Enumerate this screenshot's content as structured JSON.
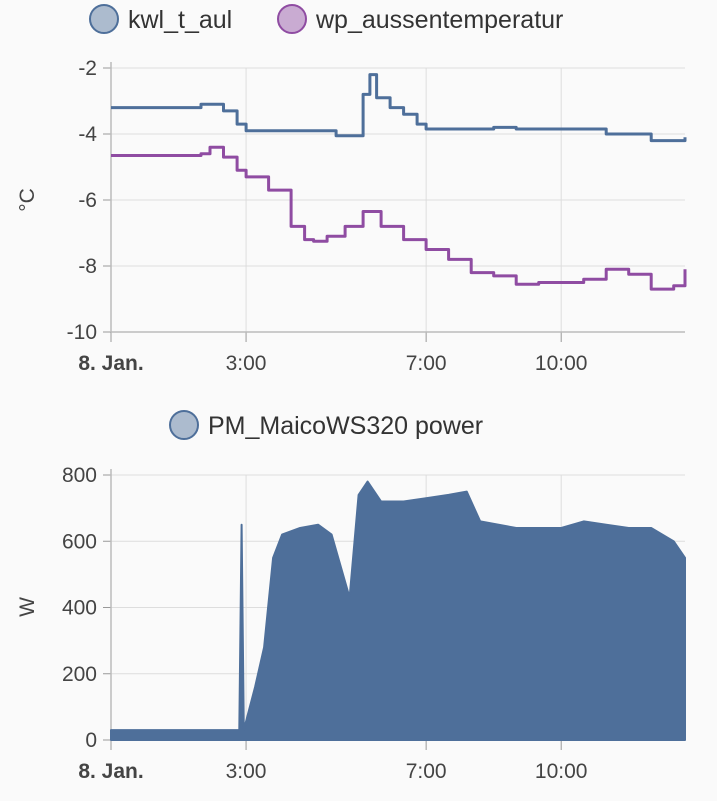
{
  "colors": {
    "series1": "#4e6f9a",
    "series2": "#8f4ca2",
    "power": "#4e6f9a",
    "grid": "#dddddd",
    "axis": "#bbbbbb"
  },
  "chart_data": [
    {
      "type": "line",
      "ylabel": "°C",
      "ylim": [
        -10,
        -2
      ],
      "yticks": [
        "-2",
        "-4",
        "-6",
        "-8",
        "-10"
      ],
      "xticks": [
        "8. Jan.",
        "3:00",
        "7:00",
        "10:00"
      ],
      "x_hours": [
        0,
        3,
        7,
        10
      ],
      "x_range_hours": [
        0,
        12.75
      ],
      "legend": "top",
      "grid": true,
      "series": [
        {
          "name": "kwl_t_aul",
          "x": [
            0,
            1,
            2,
            2.3,
            2.5,
            2.8,
            3,
            4,
            5,
            5.4,
            5.6,
            5.75,
            5.9,
            6.2,
            6.5,
            6.8,
            7,
            8,
            8.5,
            9,
            10,
            11,
            12,
            12.5,
            12.75
          ],
          "y": [
            -3.2,
            -3.2,
            -3.1,
            -3.1,
            -3.3,
            -3.7,
            -3.9,
            -3.9,
            -4.05,
            -4.05,
            -2.8,
            -2.2,
            -2.9,
            -3.2,
            -3.4,
            -3.7,
            -3.85,
            -3.85,
            -3.8,
            -3.85,
            -3.85,
            -4.0,
            -4.2,
            -4.2,
            -4.1
          ]
        },
        {
          "name": "wp_aussentemperatur",
          "x": [
            0,
            1,
            2,
            2.2,
            2.5,
            2.8,
            3,
            3.5,
            4,
            4.3,
            4.5,
            4.8,
            5.2,
            5.6,
            6,
            6.5,
            7,
            7.5,
            8,
            8.5,
            9,
            9.5,
            10,
            10.5,
            11,
            11.5,
            12,
            12.5,
            12.75
          ],
          "y": [
            -4.65,
            -4.65,
            -4.6,
            -4.4,
            -4.7,
            -5.1,
            -5.3,
            -5.7,
            -6.8,
            -7.2,
            -7.25,
            -7.1,
            -6.8,
            -6.35,
            -6.8,
            -7.2,
            -7.5,
            -7.8,
            -8.2,
            -8.3,
            -8.55,
            -8.5,
            -8.5,
            -8.4,
            -8.1,
            -8.25,
            -8.7,
            -8.6,
            -8.1
          ]
        }
      ]
    },
    {
      "type": "area",
      "ylabel": "W",
      "ylim": [
        0,
        800
      ],
      "yticks": [
        "800",
        "600",
        "400",
        "200",
        "0"
      ],
      "xticks": [
        "8. Jan.",
        "3:00",
        "7:00",
        "10:00"
      ],
      "x_hours": [
        0,
        3,
        7,
        10
      ],
      "x_range_hours": [
        0,
        12.75
      ],
      "legend": "top",
      "grid": true,
      "series": [
        {
          "name": "PM_MaicoWS320 power",
          "x": [
            0,
            1,
            2,
            2.85,
            2.9,
            2.95,
            3.2,
            3.4,
            3.6,
            3.8,
            4.2,
            4.6,
            4.9,
            5.3,
            5.5,
            5.7,
            6,
            6.5,
            7,
            7.5,
            7.9,
            8.2,
            9,
            10,
            10.5,
            11,
            11.5,
            12,
            12.5,
            12.75
          ],
          "y": [
            30,
            30,
            30,
            30,
            650,
            30,
            160,
            280,
            550,
            620,
            640,
            650,
            620,
            430,
            740,
            780,
            720,
            720,
            730,
            740,
            750,
            660,
            640,
            640,
            660,
            650,
            640,
            640,
            600,
            550
          ]
        }
      ]
    }
  ]
}
